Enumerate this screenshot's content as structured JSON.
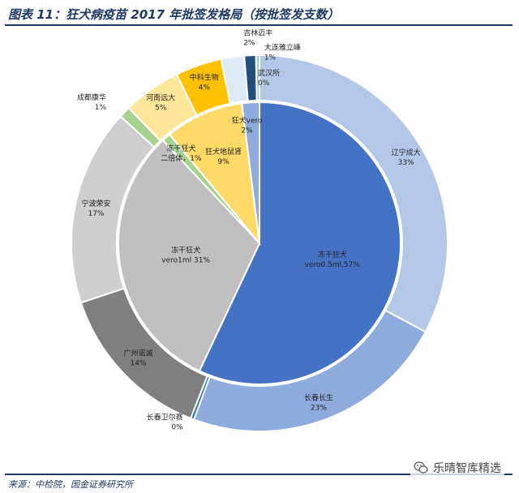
{
  "figure": {
    "title": "图表 11：狂犬病疫苗 2017 年批签发格局（按批签发支数）",
    "source": "来源：中检院，国金证券研究所",
    "watermark": "乐晴智库精选",
    "watermark_icon": "wechat-icon"
  },
  "chart_data": {
    "type": "pie",
    "rings": [
      {
        "name": "inner",
        "slices": [
          {
            "label": "冻干狂犬 vero0.5ml,57%",
            "value": 57,
            "color": "#4472c4"
          },
          {
            "label": "冻干狂犬 vero1ml 31%",
            "value": 31,
            "color": "#bfbfbf"
          },
          {
            "label": "冻干狂犬 二倍体，1%",
            "value": 1,
            "color": "#a9d18e"
          },
          {
            "label": "狂犬地鼠肾 9%",
            "value": 9,
            "color": "#ffd966"
          },
          {
            "label": "狂犬vero 2%",
            "value": 2,
            "color": "#8faadc"
          }
        ]
      },
      {
        "name": "outer",
        "slices": [
          {
            "label": "辽宁成大 33%",
            "value": 33,
            "color": "#b4c7e7"
          },
          {
            "label": "长春长生 23%",
            "value": 23,
            "color": "#8faadc"
          },
          {
            "label": "长春卫尔赛 0%",
            "value": 0.3,
            "color": "#2e75b6"
          },
          {
            "label": "广州诺诚 14%",
            "value": 14,
            "color": "#7f7f7f"
          },
          {
            "label": "宁波荣安 17%",
            "value": 17,
            "color": "#d0cece"
          },
          {
            "label": "成都康华 1%",
            "value": 1,
            "color": "#a9d18e"
          },
          {
            "label": "河南远大 5%",
            "value": 5,
            "color": "#ffe699"
          },
          {
            "label": "中科生物 4%",
            "value": 4,
            "color": "#ffc000"
          },
          {
            "label": "吉林迈丰 2%",
            "value": 2,
            "color": "#deebf7"
          },
          {
            "label": "大连雅立峰 1%",
            "value": 1,
            "color": "#1f4e79"
          },
          {
            "label": "武汉所 0%",
            "value": 0.3,
            "color": "#9dc3e6"
          }
        ]
      }
    ]
  }
}
